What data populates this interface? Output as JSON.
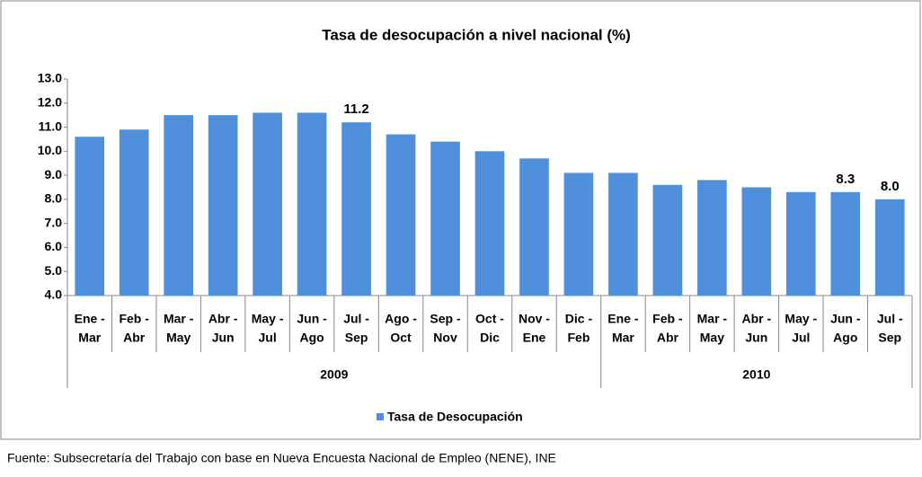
{
  "chart_data": {
    "type": "bar",
    "title": "Tasa de desocupación a nivel nacional (%)",
    "groups": [
      {
        "name": "2009",
        "categories": [
          [
            "Ene -",
            "Mar"
          ],
          [
            "Feb -",
            "Abr"
          ],
          [
            "Mar -",
            "May"
          ],
          [
            "Abr -",
            "Jun"
          ],
          [
            "May -",
            "Jul"
          ],
          [
            "Jun -",
            "Ago"
          ],
          [
            "Jul -",
            "Sep"
          ],
          [
            "Ago -",
            "Oct"
          ],
          [
            "Sep -",
            "Nov"
          ],
          [
            "Oct -",
            "Dic"
          ],
          [
            "Nov -",
            "Ene"
          ],
          [
            "Dic -",
            "Feb"
          ]
        ]
      },
      {
        "name": "2010",
        "categories": [
          [
            "Ene -",
            "Mar"
          ],
          [
            "Feb -",
            "Abr"
          ],
          [
            "Mar -",
            "May"
          ],
          [
            "Abr -",
            "Jun"
          ],
          [
            "May -",
            "Jul"
          ],
          [
            "Jun -",
            "Ago"
          ],
          [
            "Jul -",
            "Sep"
          ]
        ]
      }
    ],
    "series": [
      {
        "name": "Tasa de Desocupación",
        "color": "#4f8fdc",
        "values": [
          10.6,
          10.9,
          11.5,
          11.5,
          11.6,
          11.6,
          11.2,
          10.7,
          10.4,
          10.0,
          9.7,
          9.1,
          9.1,
          8.6,
          8.8,
          8.5,
          8.3,
          8.3,
          8.0
        ],
        "value_labels": [
          null,
          null,
          null,
          null,
          null,
          null,
          "11.2",
          null,
          null,
          null,
          null,
          null,
          null,
          null,
          null,
          null,
          null,
          "8.3",
          "8.0"
        ]
      }
    ],
    "ylim": [
      4,
      13
    ],
    "yticks": [
      {
        "value": 4,
        "label": "4.0"
      },
      {
        "value": 5,
        "label": "5.0"
      },
      {
        "value": 6,
        "label": "6.0"
      },
      {
        "value": 7,
        "label": "7.0"
      },
      {
        "value": 8,
        "label": "8.0"
      },
      {
        "value": 9,
        "label": "9.0"
      },
      {
        "value": 10,
        "label": "10.0"
      },
      {
        "value": 11,
        "label": "11.0"
      },
      {
        "value": 12,
        "label": "12.0"
      },
      {
        "value": 13,
        "label": "13.0"
      }
    ],
    "legend": "bottom",
    "source": "Fuente: Subsecretaría del Trabajo con base en Nueva Encuesta Nacional de Empleo (NENE), INE"
  }
}
